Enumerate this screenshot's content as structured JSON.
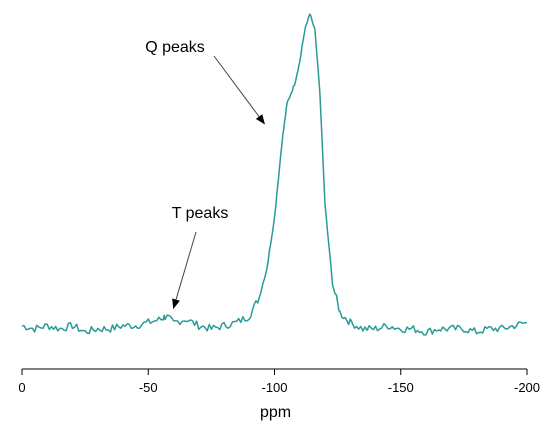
{
  "chart_data": {
    "type": "line",
    "xlabel": "ppm",
    "xlim": [
      0,
      -200
    ],
    "ylim": [
      0,
      1
    ],
    "xticks": [
      0,
      -50,
      -100,
      -150,
      -200
    ],
    "xtick_labels": [
      "0",
      "-50",
      "-100",
      "-150",
      "-200"
    ],
    "grid": false,
    "legend": "none",
    "line_color": "#2a9a96",
    "series": [
      {
        "x": [
          0,
          -5,
          -10,
          -15,
          -20,
          -25,
          -30,
          -35,
          -40,
          -45,
          -50,
          -55,
          -57,
          -60,
          -65,
          -70,
          -75,
          -80,
          -85,
          -90,
          -94,
          -97,
          -100,
          -103,
          -105,
          -108,
          -110,
          -112,
          -114,
          -116,
          -118,
          -120,
          -123,
          -126,
          -130,
          -135,
          -140,
          -145,
          -150,
          -155,
          -160,
          -165,
          -170,
          -175,
          -180,
          -185,
          -190,
          -195,
          -200
        ],
        "y": [
          0.02,
          0.01,
          0.02,
          0.01,
          0.02,
          0.0,
          0.01,
          0.01,
          0.02,
          0.02,
          0.03,
          0.04,
          0.05,
          0.03,
          0.04,
          0.02,
          0.01,
          0.02,
          0.03,
          0.05,
          0.11,
          0.2,
          0.36,
          0.6,
          0.72,
          0.78,
          0.85,
          0.95,
          1.0,
          0.95,
          0.75,
          0.4,
          0.15,
          0.06,
          0.03,
          0.01,
          0.01,
          0.02,
          0.01,
          0.01,
          0.0,
          0.01,
          0.01,
          0.01,
          0.0,
          0.01,
          0.01,
          0.02,
          0.03
        ]
      }
    ],
    "annotations": [
      {
        "text": "Q peaks",
        "target_x": -96,
        "target_y": 0.68
      },
      {
        "text": "T peaks",
        "target_x": -60,
        "target_y": 0.1
      }
    ]
  }
}
